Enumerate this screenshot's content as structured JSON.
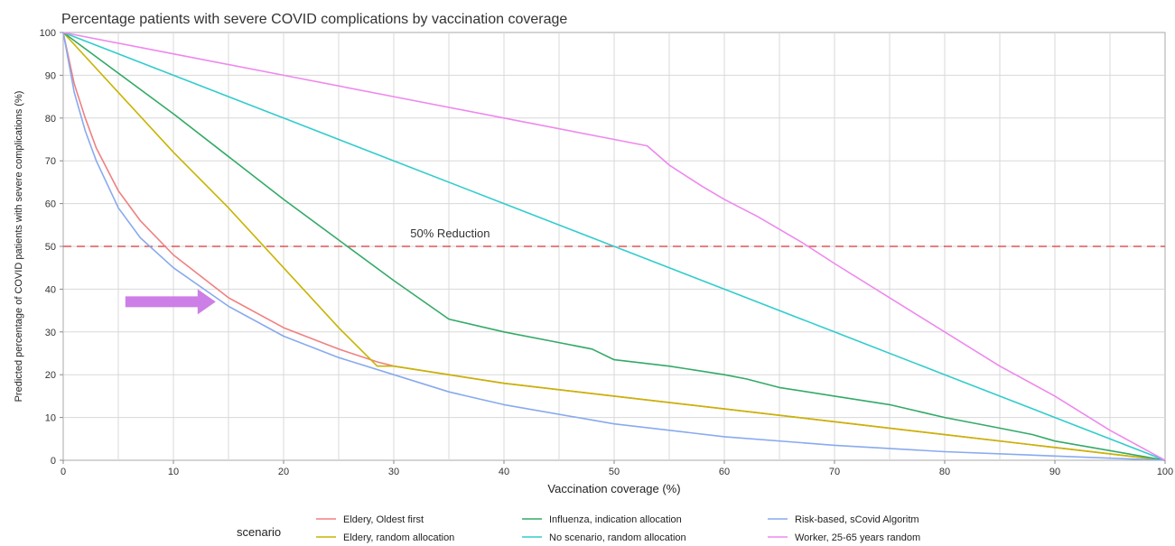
{
  "chart_data": {
    "type": "line",
    "title": "Percentage patients with severe COVID complications  by vaccination coverage",
    "xlabel": "Vaccination coverage (%)",
    "ylabel": "Predicted percentage of COVID patients with severe complications (%)",
    "xlim": [
      0,
      100
    ],
    "ylim": [
      0,
      100
    ],
    "xticks": [
      "0",
      "10",
      "20",
      "30",
      "40",
      "50",
      "60",
      "70",
      "80",
      "90",
      "100"
    ],
    "yticks": [
      "0",
      "10",
      "20",
      "30",
      "40",
      "50",
      "60",
      "70",
      "80",
      "90",
      "100"
    ],
    "grid": true,
    "reference_line": {
      "y": 50,
      "label": "50% Reduction",
      "color": "#e05555"
    },
    "annotation_arrow": {
      "color": "#cc7fe6",
      "points_to": {
        "x": 14,
        "y": 36
      }
    },
    "legend": {
      "title": "scenario",
      "placement": "bottom"
    },
    "series": [
      {
        "name": "Eldery, Oldest first",
        "color": "#f08080",
        "x": [
          0,
          1,
          2,
          3,
          5,
          7,
          10,
          15,
          20,
          25,
          28.5,
          30,
          35,
          40,
          50,
          60,
          70,
          80,
          90,
          100
        ],
        "y": [
          100,
          88,
          80,
          73,
          63,
          56,
          48,
          38,
          31,
          26,
          23,
          22,
          20,
          18,
          15,
          12,
          9,
          6,
          3,
          0
        ]
      },
      {
        "name": "Eldery, random allocation",
        "color": "#c8b400",
        "x": [
          0,
          5,
          10,
          15,
          20,
          25,
          28.5,
          30,
          35,
          40,
          50,
          60,
          70,
          80,
          90,
          100
        ],
        "y": [
          100,
          86,
          72,
          59,
          45,
          31,
          22,
          22,
          20,
          18,
          15,
          12,
          9,
          6,
          3,
          0
        ]
      },
      {
        "name": "Influenza, indication allocation",
        "color": "#33aa66",
        "x": [
          0,
          10,
          20,
          30,
          35,
          40,
          45,
          48,
          50,
          55,
          60,
          62,
          65,
          70,
          75,
          80,
          85,
          88,
          90,
          100
        ],
        "y": [
          100,
          81,
          61,
          42,
          33,
          30,
          27.5,
          26,
          23.5,
          22,
          20,
          19,
          17,
          15,
          13,
          10,
          7.5,
          6,
          4.5,
          0
        ]
      },
      {
        "name": "No scenario, random allocation",
        "color": "#33cccc",
        "x": [
          0,
          10,
          20,
          30,
          40,
          50,
          60,
          70,
          80,
          90,
          100
        ],
        "y": [
          100,
          90,
          80,
          70,
          60,
          50,
          40,
          30,
          20,
          10,
          0
        ]
      },
      {
        "name": "Risk-based, sCovid Algoritm",
        "color": "#88aaee",
        "x": [
          0,
          1,
          2,
          3,
          5,
          7,
          10,
          15,
          20,
          25,
          30,
          35,
          40,
          50,
          60,
          70,
          80,
          90,
          100
        ],
        "y": [
          100,
          86,
          77,
          70,
          59,
          52,
          45,
          36,
          29,
          24,
          20,
          16,
          13,
          8.5,
          5.5,
          3.5,
          2,
          1,
          0
        ]
      },
      {
        "name": "Worker, 25-65 years random",
        "color": "#ee88ee",
        "x": [
          0,
          10,
          20,
          30,
          40,
          50,
          53,
          55,
          58,
          60,
          63,
          67,
          70,
          75,
          80,
          85,
          90,
          95,
          100
        ],
        "y": [
          100,
          95,
          90,
          85,
          80,
          75,
          73.5,
          69,
          64,
          61,
          57,
          51,
          46,
          38,
          30,
          22,
          15,
          7,
          0
        ]
      }
    ]
  }
}
